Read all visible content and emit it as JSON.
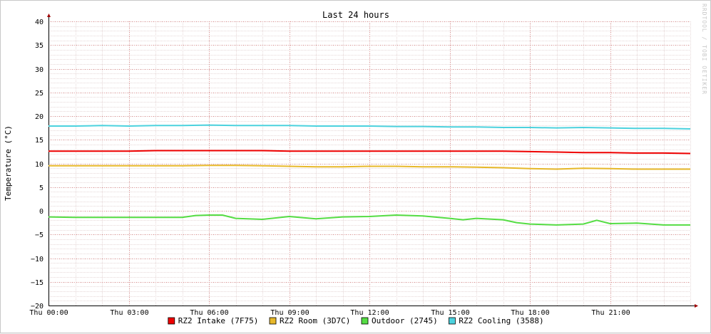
{
  "chart_data": {
    "type": "line",
    "title": "Last 24 hours",
    "xlabel": "",
    "ylabel": "Temperature (°C)",
    "watermark": "RRDTOOL / TOBI OETIKER",
    "x_ticks": [
      "Thu 00:00",
      "Thu 03:00",
      "Thu 06:00",
      "Thu 09:00",
      "Thu 12:00",
      "Thu 15:00",
      "Thu 18:00",
      "Thu 21:00"
    ],
    "x_range_hours": [
      0,
      24
    ],
    "ylim": [
      -20,
      40
    ],
    "y_ticks": [
      -20,
      -15,
      -10,
      -5,
      0,
      5,
      10,
      15,
      20,
      25,
      30,
      35,
      40
    ],
    "grid": true,
    "legend_position": "bottom",
    "series": [
      {
        "name": "RZ2 Intake (7F75)",
        "color": "#EE0000",
        "x_hours": [
          0,
          1,
          2,
          3,
          4,
          5,
          6,
          7,
          8,
          9,
          10,
          11,
          12,
          13,
          14,
          15,
          16,
          17,
          18,
          19,
          20,
          21,
          22,
          23,
          24
        ],
        "values": [
          12.6,
          12.6,
          12.6,
          12.6,
          12.7,
          12.7,
          12.7,
          12.7,
          12.7,
          12.6,
          12.6,
          12.6,
          12.6,
          12.6,
          12.6,
          12.6,
          12.6,
          12.6,
          12.5,
          12.4,
          12.3,
          12.3,
          12.2,
          12.2,
          12.1
        ]
      },
      {
        "name": "RZ2 Room (3D7C)",
        "color": "#E7B82A",
        "x_hours": [
          0,
          1,
          2,
          3,
          4,
          5,
          6,
          7,
          8,
          9,
          10,
          11,
          12,
          13,
          14,
          15,
          16,
          17,
          18,
          19,
          20,
          21,
          22,
          23,
          24
        ],
        "values": [
          9.5,
          9.5,
          9.5,
          9.5,
          9.5,
          9.5,
          9.6,
          9.6,
          9.5,
          9.4,
          9.3,
          9.3,
          9.4,
          9.4,
          9.3,
          9.3,
          9.2,
          9.1,
          8.9,
          8.8,
          9.0,
          8.9,
          8.8,
          8.8,
          8.8
        ]
      },
      {
        "name": "Outdoor (2745)",
        "color": "#55DD44",
        "x_hours": [
          0,
          1,
          2,
          3,
          4,
          5,
          5.5,
          6,
          6.5,
          7,
          8,
          9,
          10,
          11,
          12,
          13,
          14,
          15,
          15.5,
          16,
          17,
          17.5,
          18,
          19,
          20,
          20.5,
          21,
          22,
          23,
          24
        ],
        "values": [
          -1.3,
          -1.4,
          -1.4,
          -1.4,
          -1.4,
          -1.4,
          -1.0,
          -0.9,
          -0.9,
          -1.6,
          -1.8,
          -1.2,
          -1.7,
          -1.3,
          -1.2,
          -0.9,
          -1.1,
          -1.6,
          -1.9,
          -1.6,
          -1.9,
          -2.5,
          -2.8,
          -3.0,
          -2.8,
          -2.0,
          -2.7,
          -2.6,
          -3.0,
          -3.0
        ]
      },
      {
        "name": "RZ2 Cooling (3588)",
        "color": "#4CD2DE",
        "x_hours": [
          0,
          1,
          2,
          3,
          4,
          5,
          6,
          7,
          8,
          9,
          10,
          11,
          12,
          13,
          14,
          15,
          16,
          17,
          18,
          19,
          20,
          21,
          22,
          23,
          24
        ],
        "values": [
          17.9,
          17.9,
          18.0,
          17.9,
          18.0,
          18.0,
          18.1,
          18.0,
          18.0,
          18.0,
          17.9,
          17.9,
          17.9,
          17.8,
          17.8,
          17.7,
          17.7,
          17.6,
          17.6,
          17.5,
          17.6,
          17.5,
          17.4,
          17.4,
          17.3
        ]
      }
    ]
  }
}
